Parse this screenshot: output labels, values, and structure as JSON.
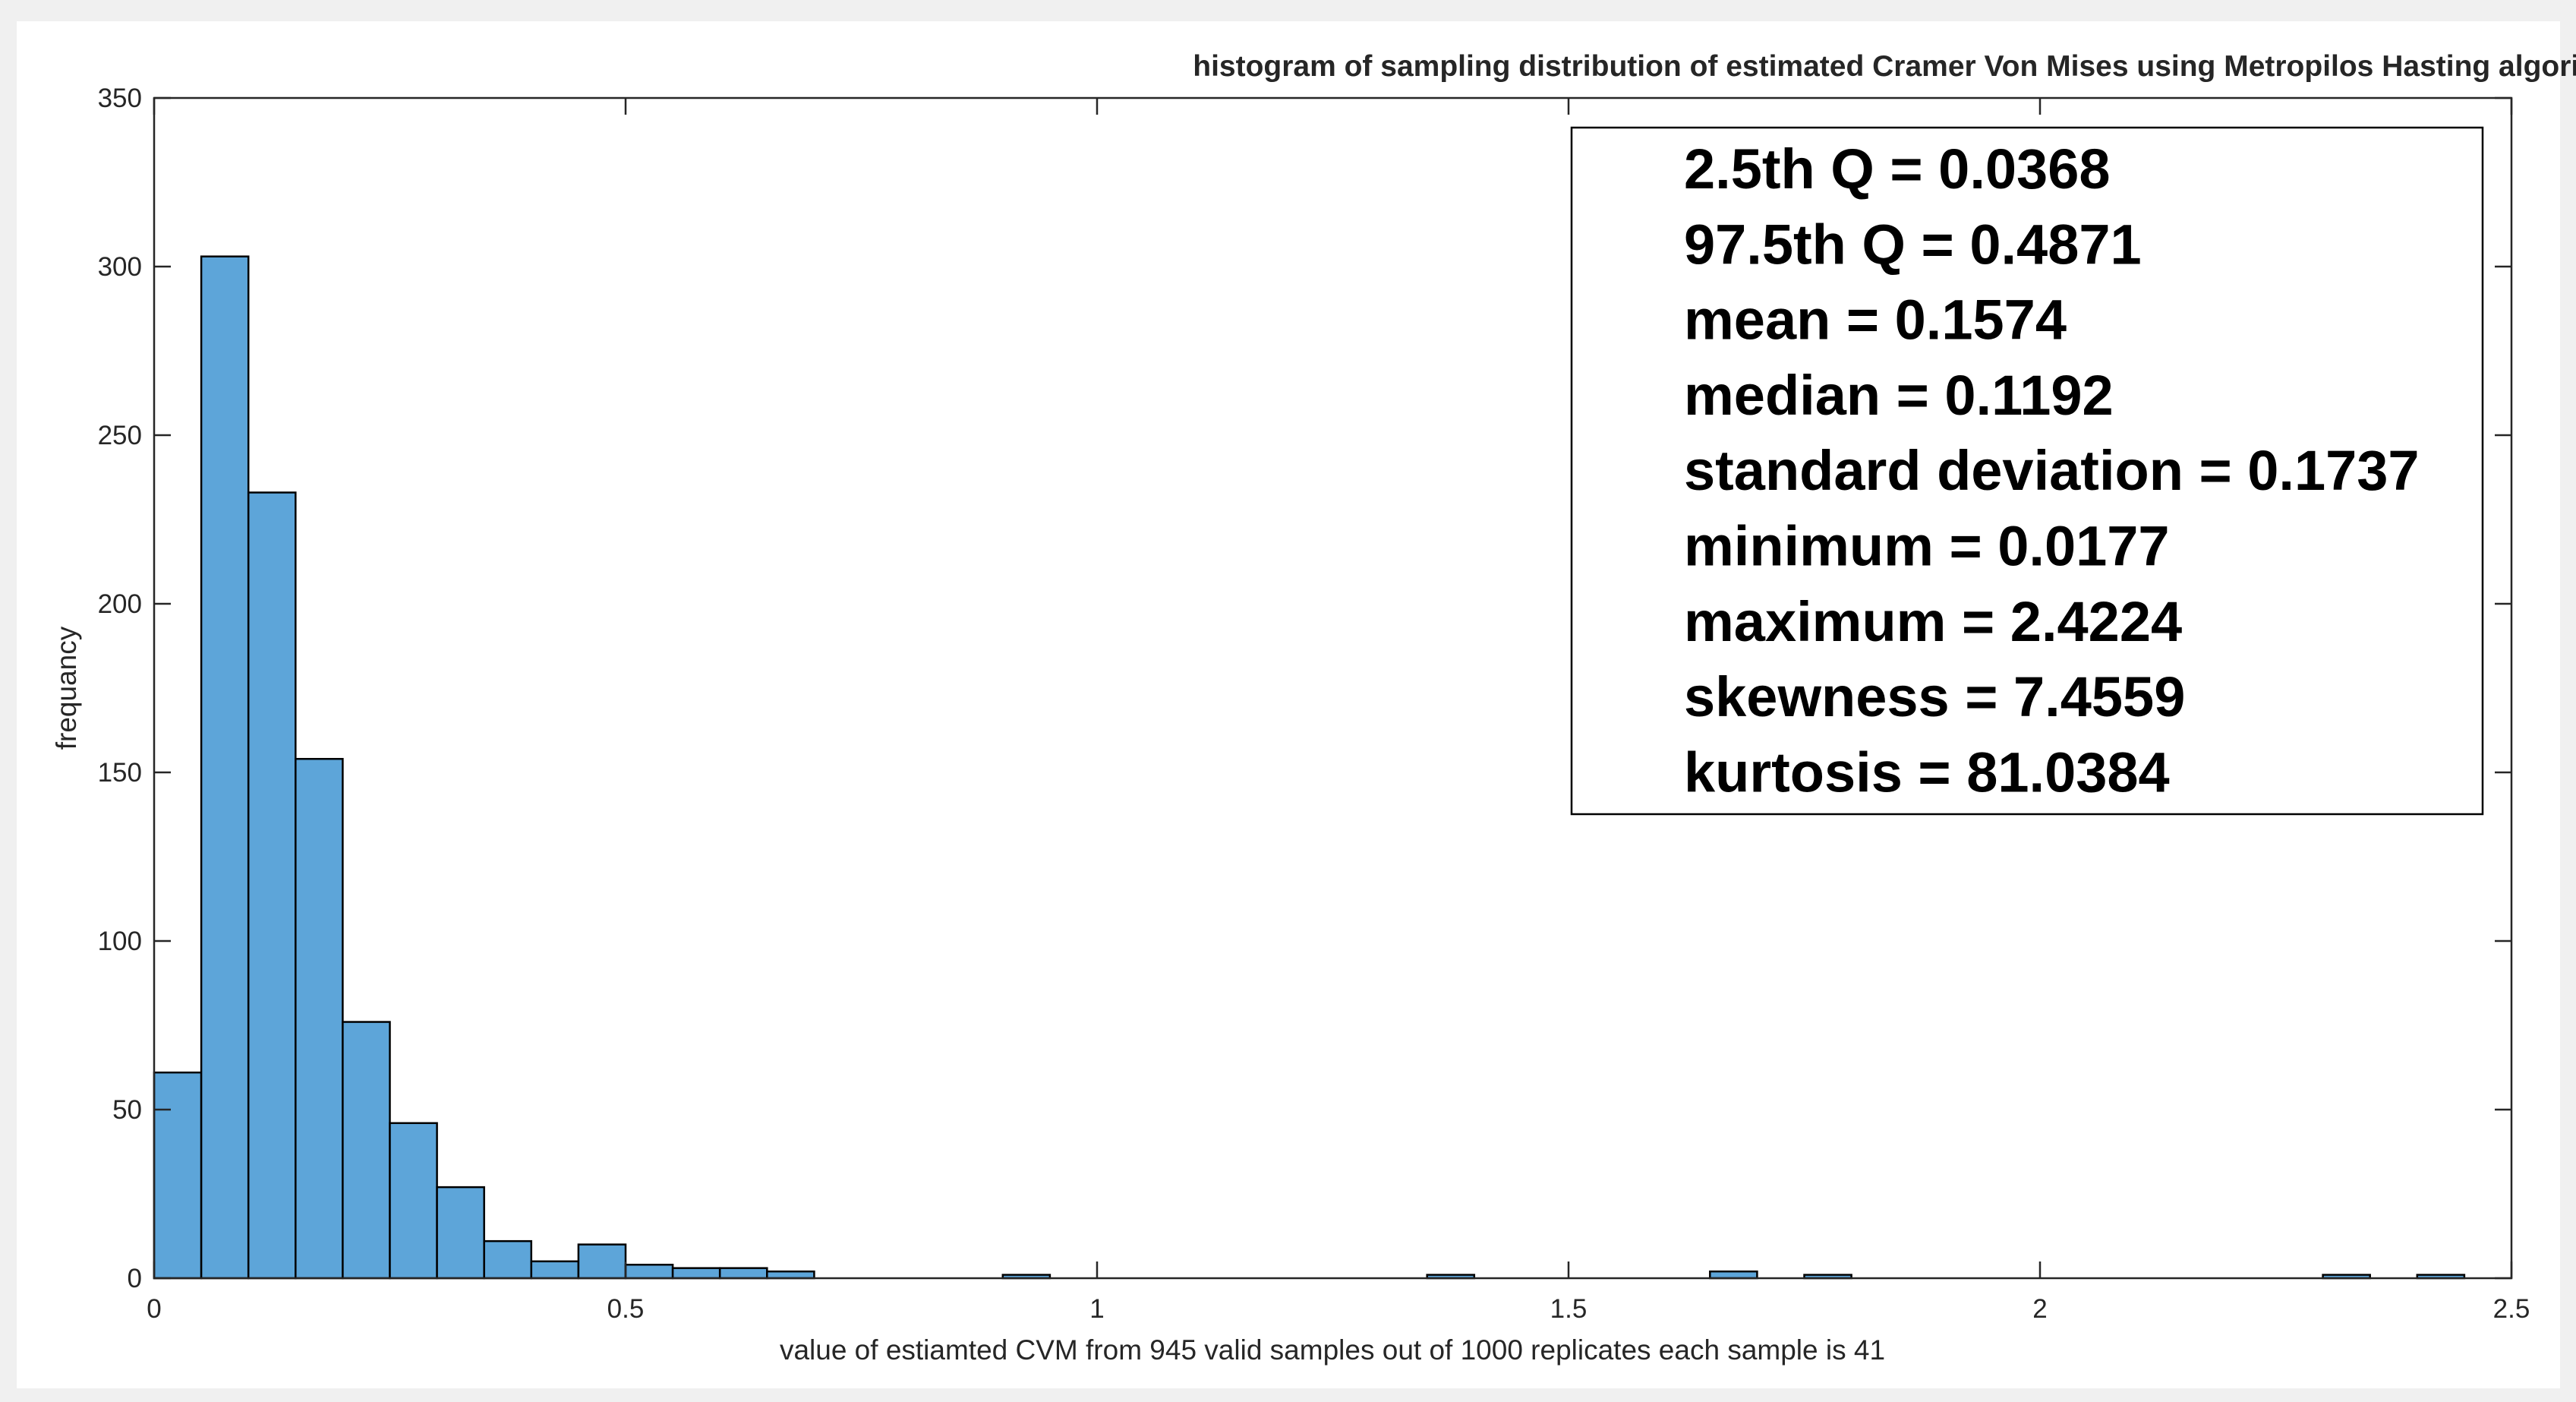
{
  "chart_data": {
    "type": "bar",
    "title": "histogram of sampling distribution of estimated Cramer Von Mises using Metropilos Hasting algorithm",
    "xlabel": "value of estiamted CVM from 945 valid samples out of 1000 replicates each sample is 41",
    "ylabel": "frequancy",
    "xlim": [
      0,
      2.5
    ],
    "ylim": [
      0,
      350
    ],
    "xticks": [
      "0",
      "0.5",
      "1",
      "1.5",
      "2",
      "2.5"
    ],
    "xtick_values": [
      0,
      0.5,
      1,
      1.5,
      2,
      2.5
    ],
    "yticks": [
      "0",
      "50",
      "100",
      "150",
      "200",
      "250",
      "300",
      "350"
    ],
    "ytick_values": [
      0,
      50,
      100,
      150,
      200,
      250,
      300,
      350
    ],
    "bin_width": 0.05,
    "bins": [
      {
        "x0": 0.0,
        "count": 61
      },
      {
        "x0": 0.05,
        "count": 303
      },
      {
        "x0": 0.1,
        "count": 233
      },
      {
        "x0": 0.15,
        "count": 154
      },
      {
        "x0": 0.2,
        "count": 76
      },
      {
        "x0": 0.25,
        "count": 46
      },
      {
        "x0": 0.3,
        "count": 27
      },
      {
        "x0": 0.35,
        "count": 11
      },
      {
        "x0": 0.4,
        "count": 5
      },
      {
        "x0": 0.45,
        "count": 10
      },
      {
        "x0": 0.5,
        "count": 4
      },
      {
        "x0": 0.55,
        "count": 3
      },
      {
        "x0": 0.6,
        "count": 3
      },
      {
        "x0": 0.65,
        "count": 2
      },
      {
        "x0": 0.9,
        "count": 1
      },
      {
        "x0": 1.35,
        "count": 1
      },
      {
        "x0": 1.65,
        "count": 2
      },
      {
        "x0": 1.75,
        "count": 1
      },
      {
        "x0": 2.3,
        "count": 1
      },
      {
        "x0": 2.4,
        "count": 1
      }
    ],
    "bar_color": "#5da5d9",
    "bar_edge_color": "#000000",
    "grid": false,
    "annotation": {
      "placement": "top-right",
      "lines": [
        "2.5th Q = 0.0368",
        "97.5th Q = 0.4871",
        "mean = 0.1574",
        "median = 0.1192",
        "standard deviation = 0.1737",
        "minimum = 0.0177",
        "maximum = 2.4224",
        "skewness = 7.4559",
        "kurtosis = 81.0384"
      ]
    }
  }
}
